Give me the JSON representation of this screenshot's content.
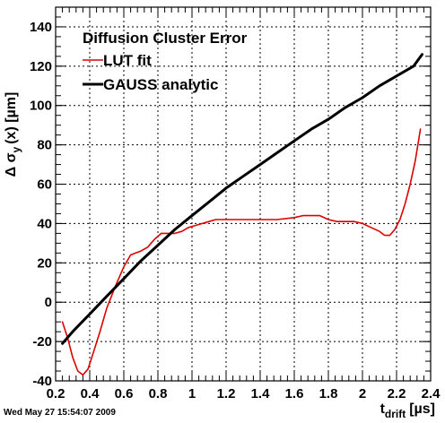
{
  "footer": {
    "timestamp": "Wed May 27 15:54:07 2009"
  },
  "chart_data": {
    "type": "line",
    "legend": {
      "title": "Diffusion Cluster Error",
      "placement": "top-left"
    },
    "xaxis": {
      "label_main": "t",
      "label_sub": "drift",
      "label_unit": "[µs]",
      "range": [
        0.2,
        2.4
      ],
      "ticks": [
        0.2,
        0.4,
        0.6,
        0.8,
        1.0,
        1.2,
        1.4,
        1.6,
        1.8,
        2.0,
        2.2,
        2.4
      ],
      "tick_labels": [
        "0.2",
        "0.4",
        "0.6",
        "0.8",
        "1",
        "1.2",
        "1.4",
        "1.6",
        "1.8",
        "2",
        "2.2",
        "2.4"
      ]
    },
    "yaxis": {
      "label_main": "Δ σ",
      "label_sub": "y",
      "label_unit": "(x) [µm]",
      "range": [
        -40,
        150
      ],
      "ticks": [
        -40,
        -20,
        0,
        20,
        40,
        60,
        80,
        100,
        120,
        140
      ],
      "tick_labels": [
        "-40",
        "-20",
        "0",
        "20",
        "40",
        "60",
        "80",
        "100",
        "120",
        "140"
      ]
    },
    "grid": true,
    "series": [
      {
        "name": "LUT fit",
        "color": "#dd0000",
        "x": [
          0.24,
          0.27,
          0.3,
          0.33,
          0.36,
          0.39,
          0.42,
          0.46,
          0.5,
          0.55,
          0.6,
          0.64,
          0.67,
          0.7,
          0.74,
          0.78,
          0.82,
          0.86,
          0.9,
          0.94,
          0.98,
          1.02,
          1.06,
          1.1,
          1.14,
          1.2,
          1.3,
          1.4,
          1.5,
          1.6,
          1.65,
          1.7,
          1.75,
          1.8,
          1.85,
          1.9,
          1.95,
          2.0,
          2.05,
          2.1,
          2.13,
          2.16,
          2.19,
          2.22,
          2.25,
          2.28,
          2.31,
          2.34
        ],
        "y": [
          -10,
          -18,
          -28,
          -35,
          -37,
          -34,
          -26,
          -15,
          -3,
          8,
          18,
          24,
          25,
          26,
          28,
          32,
          35,
          35,
          35,
          36,
          38,
          39,
          40,
          41,
          42,
          42,
          42,
          42,
          42,
          43,
          44,
          44,
          44,
          42,
          41,
          41,
          41,
          40,
          38,
          36,
          34,
          34,
          37,
          42,
          50,
          60,
          72,
          88
        ]
      },
      {
        "name": "GAUSS analytic",
        "color": "#000000",
        "x": [
          0.24,
          0.3,
          0.4,
          0.5,
          0.6,
          0.7,
          0.8,
          0.9,
          1.0,
          1.1,
          1.2,
          1.3,
          1.4,
          1.5,
          1.6,
          1.7,
          1.8,
          1.9,
          2.0,
          2.1,
          2.2,
          2.3,
          2.35
        ],
        "y": [
          -21,
          -15,
          -6,
          3,
          12,
          21,
          29,
          37,
          44,
          51,
          58,
          64,
          70,
          76,
          82,
          88,
          93,
          99,
          104,
          110,
          115,
          120,
          126
        ]
      }
    ]
  }
}
